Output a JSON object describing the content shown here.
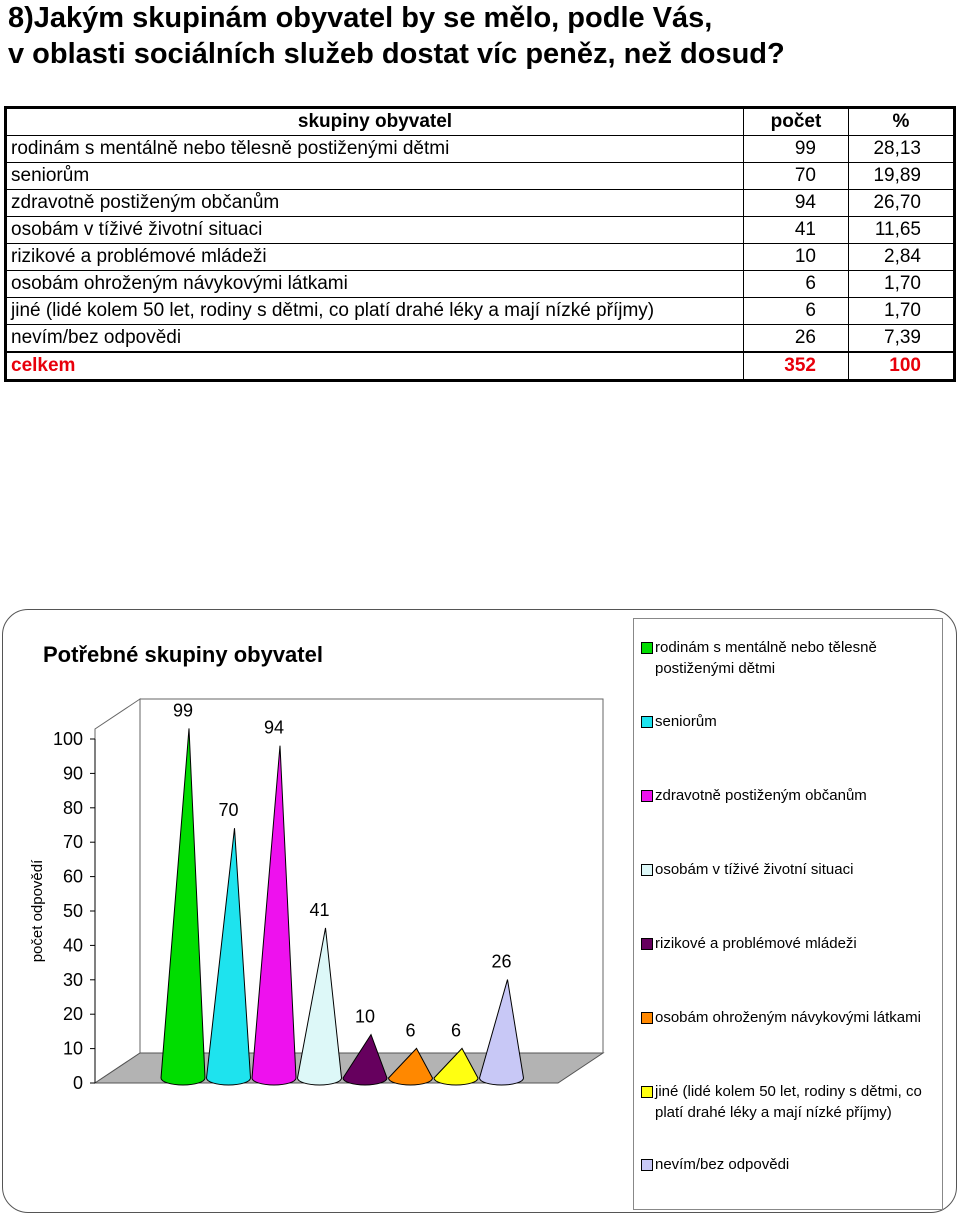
{
  "heading": {
    "line1": "8)Jakým skupinám obyvatel by se mělo, podle Vás,",
    "line2": "v oblasti sociálních služeb dostat víc peněz, než dosud?"
  },
  "table": {
    "headers": [
      "skupiny obyvatel",
      "počet",
      "%"
    ],
    "rows": [
      [
        "rodinám s mentálně nebo tělesně postiženými dětmi",
        "99",
        "28,13"
      ],
      [
        "seniorům",
        "70",
        "19,89"
      ],
      [
        "zdravotně postiženým občanům",
        "94",
        "26,70"
      ],
      [
        "osobám v tíživé životní situaci",
        "41",
        "11,65"
      ],
      [
        "rizikové a problémové mládeži",
        "10",
        "2,84"
      ],
      [
        "osobám ohroženým návykovými látkami",
        "6",
        "1,70"
      ],
      [
        "jiné (lidé kolem 50 let, rodiny s dětmi, co platí drahé léky a mají nízké příjmy)",
        "6",
        "1,70"
      ],
      [
        "nevím/bez odpovědi",
        "26",
        "7,39"
      ]
    ],
    "total": [
      "celkem",
      "352",
      "100"
    ],
    "total_color": "#e8000b"
  },
  "chart_data": {
    "type": "bar",
    "subtype": "3d-cone",
    "title": "Potřebné skupiny obyvatel",
    "xlabel": "",
    "ylabel": "počet odpovědí",
    "ylim": [
      0,
      100
    ],
    "yticks": [
      0,
      10,
      20,
      30,
      40,
      50,
      60,
      70,
      80,
      90,
      100
    ],
    "grid": false,
    "legend_position": "right",
    "series": [
      {
        "name": "rodinám s mentálně nebo tělesně postiženými dětmi",
        "value": 99,
        "color": "#00dd00"
      },
      {
        "name": "seniorům",
        "value": 70,
        "color": "#1ee3ee"
      },
      {
        "name": "zdravotně postiženým občanům",
        "value": 94,
        "color": "#ee11ee"
      },
      {
        "name": "osobám v tíživé životní situaci",
        "value": 41,
        "color": "#ddf8f8"
      },
      {
        "name": "rizikové a problémové mládeži",
        "value": 10,
        "color": "#66005e"
      },
      {
        "name": "osobám ohroženým návykovými látkami",
        "value": 6,
        "color": "#ff8800"
      },
      {
        "name": "jiné (lidé kolem 50 let, rodiny s dětmi, co platí drahé léky a mají nízké příjmy)",
        "value": 6,
        "color": "#ffff11"
      },
      {
        "name": "nevím/bez odpovědi",
        "value": 26,
        "color": "#c8c8f6"
      }
    ]
  }
}
